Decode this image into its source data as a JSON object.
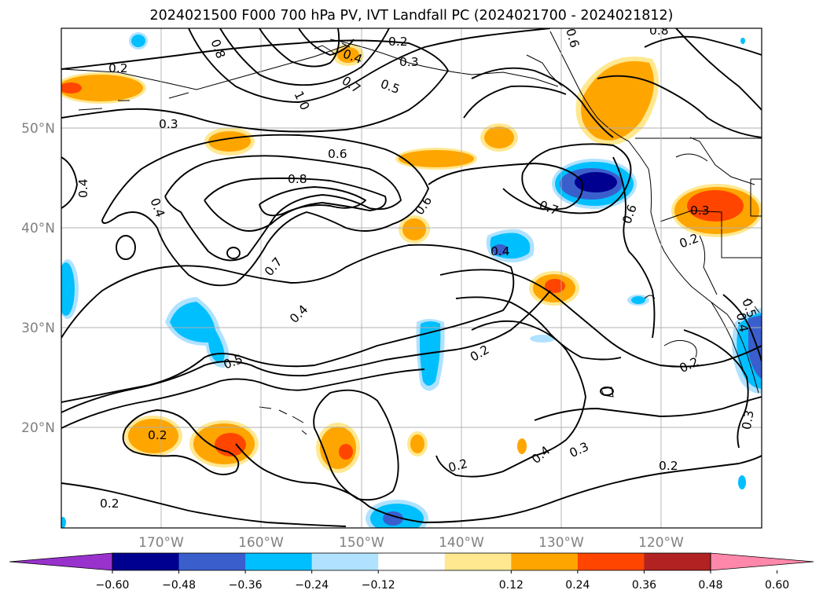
{
  "title": "2024021500 F000 700 hPa PV, IVT Landfall PC (2024021700 - 2024021812)",
  "map": {
    "lat_labels": [
      "50°N",
      "40°N",
      "30°N",
      "20°N"
    ],
    "lon_labels": [
      "170°W",
      "160°W",
      "150°W",
      "140°W",
      "130°W",
      "120°W"
    ],
    "contour_labels": [
      "0.2",
      "0.3",
      "0.8",
      "1.0",
      "0.4",
      "0.7",
      "0.5",
      "0.6",
      "0.6",
      "0.2",
      "0.3",
      "0.8",
      "0.6",
      "0.4",
      "0.4",
      "0.7",
      "0.5",
      "0.6",
      "0.4",
      "0.7",
      "0.3",
      "0.2",
      "0.4",
      "0.4",
      "0.5",
      "0.2",
      "0.2",
      "0.2",
      "0.4",
      "0.3",
      "0.2",
      "0.2",
      "0.2",
      "0.3",
      "0.8"
    ],
    "grid": "on"
  },
  "colorbar": {
    "ticks": [
      "−0.60",
      "−0.48",
      "−0.36",
      "−0.24",
      "−0.12",
      "0.12",
      "0.24",
      "0.36",
      "0.48",
      "0.60"
    ],
    "colors": [
      "#9932cc",
      "#000090",
      "#3a5fcd",
      "#00bfff",
      "#b0e2ff",
      "#ffffff",
      "#ffe890",
      "#ffa500",
      "#ff4500",
      "#b22222",
      "#ff88aa"
    ],
    "extend": "both"
  }
}
